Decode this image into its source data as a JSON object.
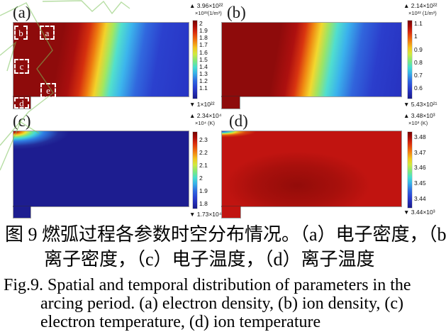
{
  "figure": {
    "panels": [
      {
        "id": "a",
        "label": "(a)",
        "quantity": "electron density",
        "colorbar": {
          "max": "▲ 3.96×10²²",
          "unit": "×10²²(1/m³)",
          "ticks": [
            "2",
            "1.9",
            "1.8",
            "1.7",
            "1.6",
            "1.5",
            "1.4",
            "1.3",
            "1.2",
            "1.1"
          ],
          "min": "▼ 1×10²²"
        },
        "regions": [
          {
            "label": "b"
          },
          {
            "label": "a"
          },
          {
            "label": "c"
          },
          {
            "label": "e"
          },
          {
            "label": "d"
          }
        ]
      },
      {
        "id": "b",
        "label": "(b)",
        "quantity": "ion density",
        "colorbar": {
          "max": "▲ 2.14×10²²",
          "unit": "×10²² (1/m³)",
          "ticks": [
            "1.1",
            "1",
            "0.9",
            "0.8",
            "0.7",
            "0.6"
          ],
          "min": "▼ 5.43×10²¹"
        }
      },
      {
        "id": "c",
        "label": "(c)",
        "quantity": "electron temperature",
        "colorbar": {
          "max": "▲ 2.34×10⁴",
          "unit": "×10⁴ (K)",
          "ticks": [
            "2.3",
            "2.2",
            "2.1",
            "2",
            "1.9",
            "1.8"
          ],
          "min": "▼ 1.73×10⁴"
        }
      },
      {
        "id": "d",
        "label": "(d)",
        "quantity": "ion temperature",
        "colorbar": {
          "max": "▲ 3.48×10³",
          "unit": "×10³ (K)",
          "ticks": [
            "3.48",
            "3.47",
            "3.46",
            "3.45",
            "3.44"
          ],
          "min": "▼ 3.44×10³"
        }
      }
    ]
  },
  "captions": {
    "zh_line1": "图 9 燃弧过程各参数时空分布情况。（a）电子密度，（b）",
    "zh_line2": "离子密度，（c）电子温度，（d）离子温度",
    "en_line1": "Fig.9. Spatial and temporal distribution of parameters in the",
    "en_line2": "arcing period. (a) electron density, (b) ion density, (c)",
    "en_line3": "electron temperature, (d) ion temperature"
  },
  "colors": {
    "colormap": "jet",
    "hot_red": "#8e0b0b",
    "cool_blue": "#2734c4",
    "deep_navy": "#1d1d90",
    "base_red": "#c11410",
    "watermark_green": "#7cc259"
  },
  "chart_data": [
    {
      "type": "heatmap",
      "panel": "(a)",
      "title": "electron density",
      "unit": "1/m³",
      "scale_note": "×10²²",
      "value_max": "3.96×10²²",
      "value_min": "1×10²²",
      "colorbar_ticks": [
        2,
        1.9,
        1.8,
        1.7,
        1.6,
        1.5,
        1.4,
        1.3,
        1.2,
        1.1
      ],
      "colormap": "jet",
      "legend_position": "right",
      "distribution": "high-density dark-red region covers left ~35% of domain widening toward top, rainbow transition band, low-density blue on right; dashed sample boxes a–e marked at left side",
      "marked_regions": [
        "b",
        "a",
        "c",
        "e",
        "d"
      ]
    },
    {
      "type": "heatmap",
      "panel": "(b)",
      "title": "ion density",
      "unit": "1/m³",
      "scale_note": "×10²²",
      "value_max": "2.14×10²²",
      "value_min": "5.43×10²¹",
      "colorbar_ticks": [
        1.1,
        1,
        0.9,
        0.8,
        0.7,
        0.6
      ],
      "colormap": "jet",
      "legend_position": "right",
      "distribution": "high-density dark-red region on left ~40% with S-shaped boundary, rainbow transition, blue on right"
    },
    {
      "type": "heatmap",
      "panel": "(c)",
      "title": "electron temperature",
      "unit": "K",
      "scale_note": "×10⁴",
      "value_max": "2.34×10⁴",
      "value_min": "1.73×10⁴",
      "colorbar_ticks": [
        2.3,
        2.2,
        2.1,
        2,
        1.9,
        1.8
      ],
      "colormap": "jet",
      "legend_position": "right",
      "distribution": "domain mostly deep blue (low T); hot red/yellow/cyan spot concentrated at top-left corner"
    },
    {
      "type": "heatmap",
      "panel": "(d)",
      "title": "ion temperature",
      "unit": "K",
      "scale_note": "×10³",
      "value_max": "3.48×10³",
      "value_min": "3.44×10³",
      "colorbar_ticks": [
        3.48,
        3.47,
        3.46,
        3.45,
        3.44
      ],
      "colormap": "jet",
      "legend_position": "right",
      "distribution": "domain mostly red (high T) with darker red blob in center; cool blue/cyan/yellow spot at top-left corner"
    }
  ]
}
